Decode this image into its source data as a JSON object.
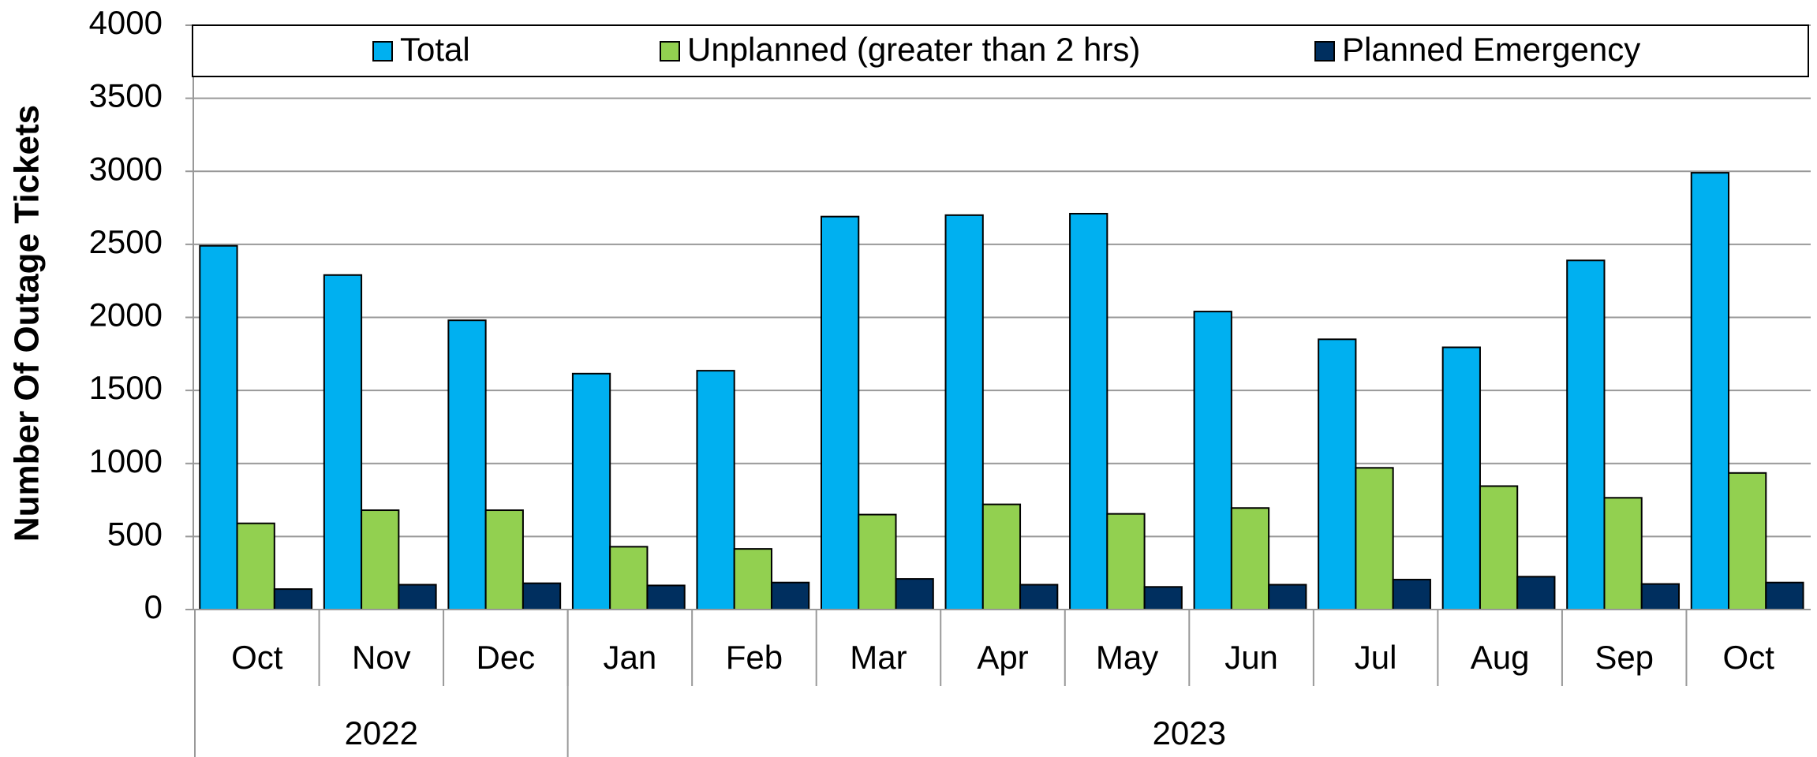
{
  "chart_data": {
    "type": "bar",
    "y_label": "Number Of Outage Tickets",
    "categories": [
      "Oct",
      "Nov",
      "Dec",
      "Jan",
      "Feb",
      "Mar",
      "Apr",
      "May",
      "Jun",
      "Jul",
      "Aug",
      "Sep",
      "Oct"
    ],
    "category_groups": [
      {
        "label": "2022",
        "span": 3
      },
      {
        "label": "2023",
        "span": 10
      }
    ],
    "series": [
      {
        "name": "Total",
        "color": "#00b0f0",
        "values": [
          2490,
          2290,
          1980,
          1615,
          1635,
          2690,
          2700,
          2710,
          2040,
          1850,
          1795,
          2390,
          2990
        ]
      },
      {
        "name": "Unplanned (greater than 2 hrs)",
        "color": "#92d050",
        "values": [
          590,
          680,
          680,
          430,
          415,
          650,
          720,
          655,
          695,
          970,
          845,
          765,
          935
        ]
      },
      {
        "name": "Planned Emergency",
        "color": "#002f5f",
        "values": [
          140,
          170,
          180,
          165,
          185,
          210,
          170,
          155,
          170,
          205,
          225,
          175,
          185
        ]
      }
    ],
    "ylim": [
      0,
      4000
    ],
    "yticks": [
      0,
      500,
      1000,
      1500,
      2000,
      2500,
      3000,
      3500,
      4000
    ],
    "grid": true,
    "legend": "top"
  }
}
